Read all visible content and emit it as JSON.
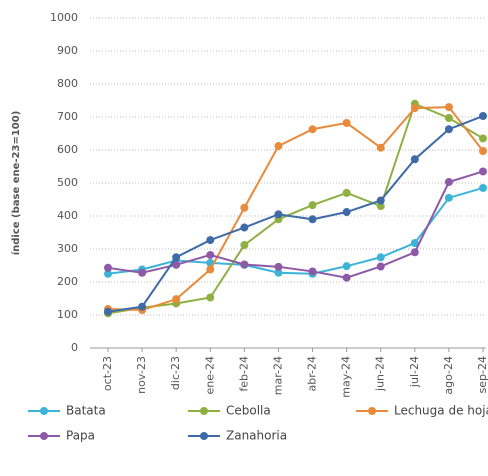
{
  "chart_data": {
    "type": "line",
    "y_label": "índice (base ene-23=100)",
    "categories": [
      "oct-23",
      "nov-23",
      "dic-23",
      "ene-24",
      "feb-24",
      "mar-24",
      "abr-24",
      "may-24",
      "jun-24",
      "jul-24",
      "ago-24",
      "sep-24"
    ],
    "series": [
      {
        "name": "Batata",
        "color": "#3bb4d8",
        "values": [
          225,
          238,
          265,
          258,
          252,
          228,
          225,
          248,
          275,
          318,
          455,
          485
        ]
      },
      {
        "name": "Cebolla",
        "color": "#8db040",
        "values": [
          105,
          122,
          135,
          153,
          312,
          390,
          433,
          470,
          430,
          740,
          697,
          635
        ]
      },
      {
        "name": "Lechuga de hoja",
        "color": "#e88a3a",
        "values": [
          118,
          115,
          148,
          238,
          425,
          612,
          663,
          682,
          607,
          727,
          730,
          597
        ]
      },
      {
        "name": "Papa",
        "color": "#8e5aa8",
        "values": [
          243,
          228,
          252,
          282,
          253,
          246,
          232,
          213,
          247,
          290,
          503,
          535
        ]
      },
      {
        "name": "Zanahoria",
        "color": "#3e6aa8",
        "values": [
          110,
          125,
          275,
          327,
          365,
          405,
          390,
          412,
          447,
          572,
          663,
          703
        ]
      }
    ],
    "ylim": [
      0,
      1000
    ],
    "yticks": [
      0,
      100,
      200,
      300,
      400,
      500,
      600,
      700,
      800,
      900,
      1000
    ],
    "grid": true
  }
}
